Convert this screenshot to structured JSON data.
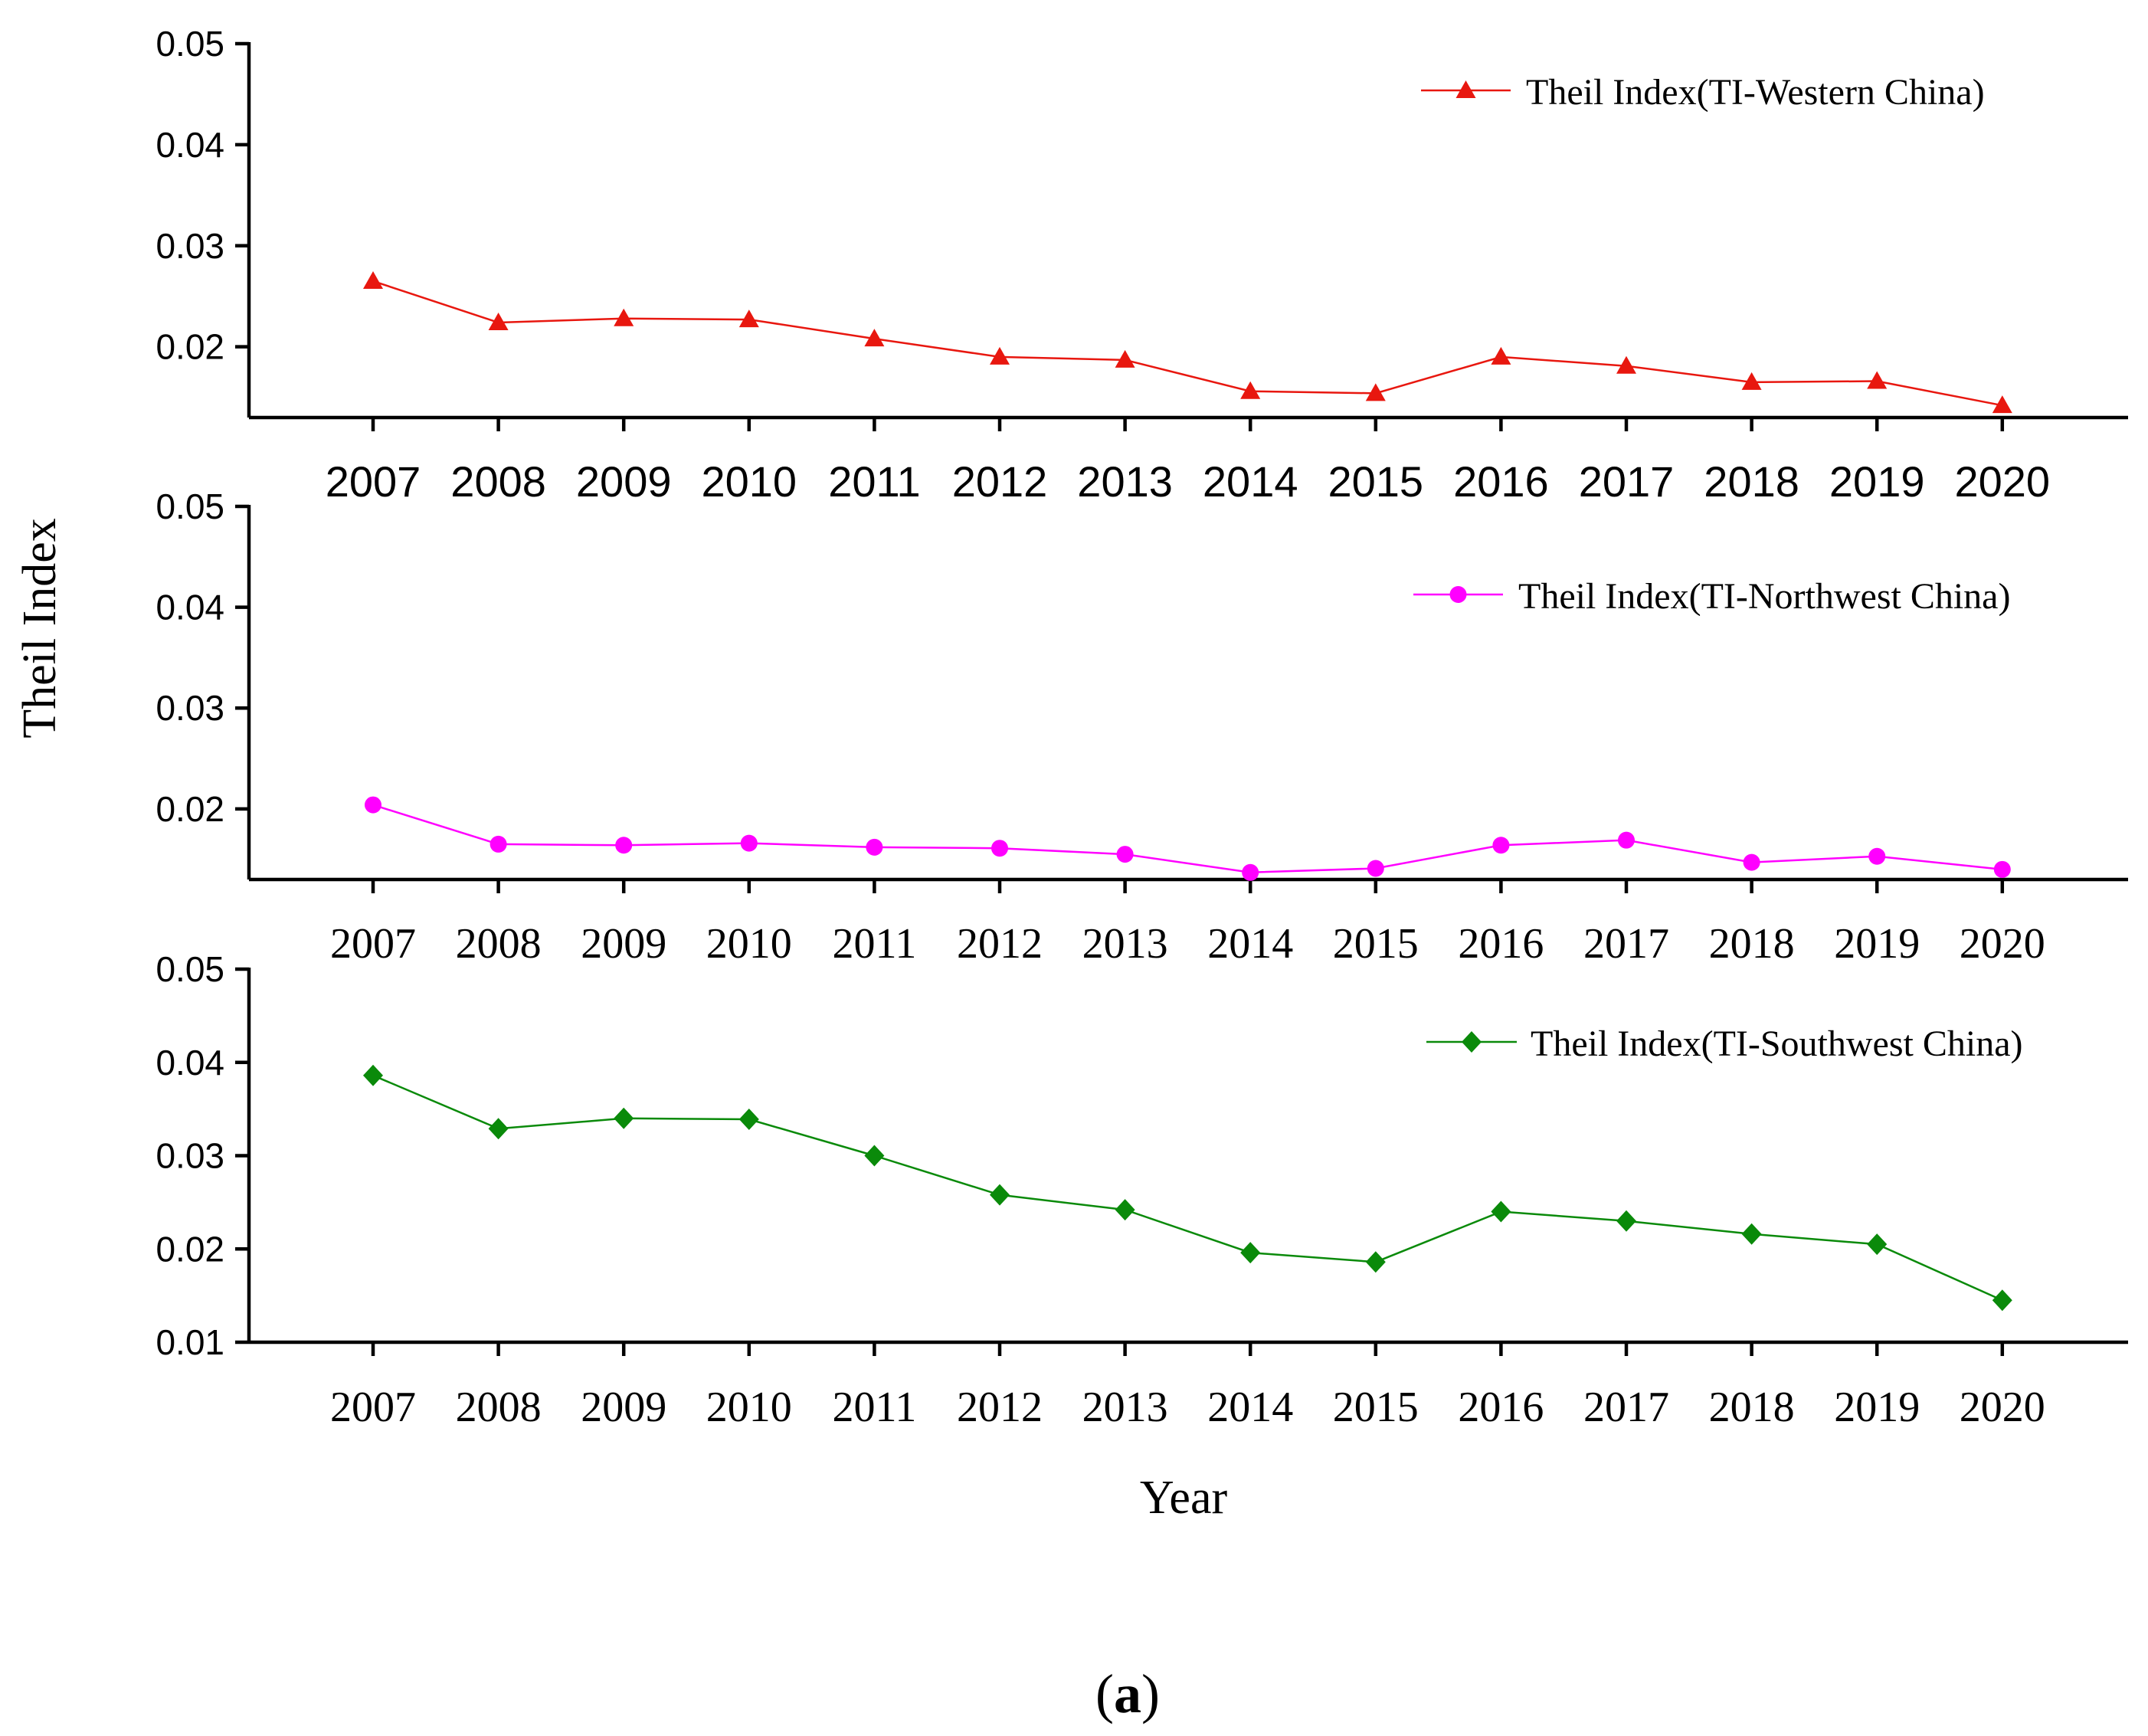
{
  "figure": {
    "y_axis_label": "Theil Index",
    "x_axis_label": "Year",
    "caption_open": "(",
    "caption_letter": "a",
    "caption_close": ")"
  },
  "chart_data": [
    {
      "type": "line",
      "name": "western",
      "x": [
        "2007",
        "2008",
        "2009",
        "2010",
        "2011",
        "2012",
        "2013",
        "2014",
        "2015",
        "2016",
        "2017",
        "2018",
        "2019",
        "2020"
      ],
      "series": [
        {
          "name": "Theil Index(TI-Western China)",
          "color": "#e8170f",
          "marker": "triangle",
          "values": [
            0.0265,
            0.0224,
            0.0228,
            0.0227,
            0.0208,
            0.019,
            0.0187,
            0.0156,
            0.0154,
            0.019,
            0.0181,
            0.0165,
            0.0166,
            0.0142
          ]
        }
      ],
      "ylim": [
        0.013,
        0.05
      ],
      "yticks": [
        "0.05",
        "0.04",
        "0.03",
        "0.02"
      ],
      "ytick_values": [
        0.05,
        0.04,
        0.03,
        0.02
      ],
      "xtick_font": "sans",
      "legend_position": "top-right"
    },
    {
      "type": "line",
      "name": "northwest",
      "x": [
        "2007",
        "2008",
        "2009",
        "2010",
        "2011",
        "2012",
        "2013",
        "2014",
        "2015",
        "2016",
        "2017",
        "2018",
        "2019",
        "2020"
      ],
      "series": [
        {
          "name": "Theil Index(TI-Northwest China)",
          "color": "#ff00ff",
          "marker": "circle",
          "values": [
            0.0204,
            0.0165,
            0.0164,
            0.0166,
            0.0162,
            0.0161,
            0.0155,
            0.0137,
            0.0141,
            0.0164,
            0.0169,
            0.0147,
            0.0153,
            0.014
          ]
        }
      ],
      "ylim": [
        0.013,
        0.05
      ],
      "yticks": [
        "0.05",
        "0.04",
        "0.03",
        "0.02"
      ],
      "ytick_values": [
        0.05,
        0.04,
        0.03,
        0.02
      ],
      "xtick_font": "serif",
      "legend_position": "top-right"
    },
    {
      "type": "line",
      "name": "southwest",
      "x": [
        "2007",
        "2008",
        "2009",
        "2010",
        "2011",
        "2012",
        "2013",
        "2014",
        "2015",
        "2016",
        "2017",
        "2018",
        "2019",
        "2020"
      ],
      "series": [
        {
          "name": "Theil Index(TI-Southwest China)",
          "color": "#0a8a0a",
          "marker": "diamond",
          "values": [
            0.0386,
            0.0329,
            0.034,
            0.0339,
            0.03,
            0.0258,
            0.0242,
            0.0196,
            0.0186,
            0.024,
            0.023,
            0.0216,
            0.0205,
            0.0145
          ]
        }
      ],
      "ylim": [
        0.01,
        0.05
      ],
      "yticks": [
        "0.05",
        "0.04",
        "0.03",
        "0.02",
        "0.01"
      ],
      "ytick_values": [
        0.05,
        0.04,
        0.03,
        0.02,
        0.01
      ],
      "xtick_font": "serif",
      "legend_position": "top-right"
    }
  ]
}
